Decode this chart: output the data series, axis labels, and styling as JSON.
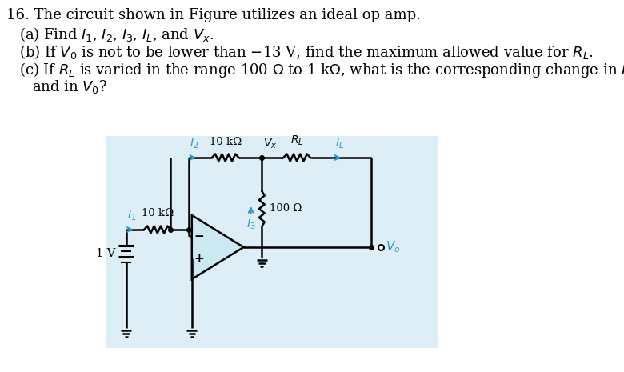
{
  "bg_color": "#ffffff",
  "circuit_bg": "#ddeef6",
  "wire_color": "#000000",
  "blue_color": "#3399cc",
  "resistor_color": "#cc6600",
  "text_color": "#000000",
  "fs_main": 13.0,
  "fs_label": 10.5,
  "fs_resistor": 10.0,
  "title": "16. The circuit shown in Figure utilizes an ideal op amp.",
  "line_a": "(a) Find I",
  "line_b": "(b) If V",
  "line_b2": " is not to be lower than −13 V, find the maximum allowed value for R",
  "line_c": "(c) If R",
  "line_c2": " is varied in the range 100 Ω to 1 kΩ, what is the corresponding change in I",
  "line_c3": "    and in V",
  "voltage_label": "1 V",
  "r1_label": "10 kΩ",
  "r2_label": "10 kΩ",
  "r3_label": "100 Ω",
  "rl_label": "R",
  "vx_label": "V",
  "vo_label": "V",
  "i1_label": "I",
  "i2_label": "I",
  "i3_label": "I",
  "il_label": "I"
}
